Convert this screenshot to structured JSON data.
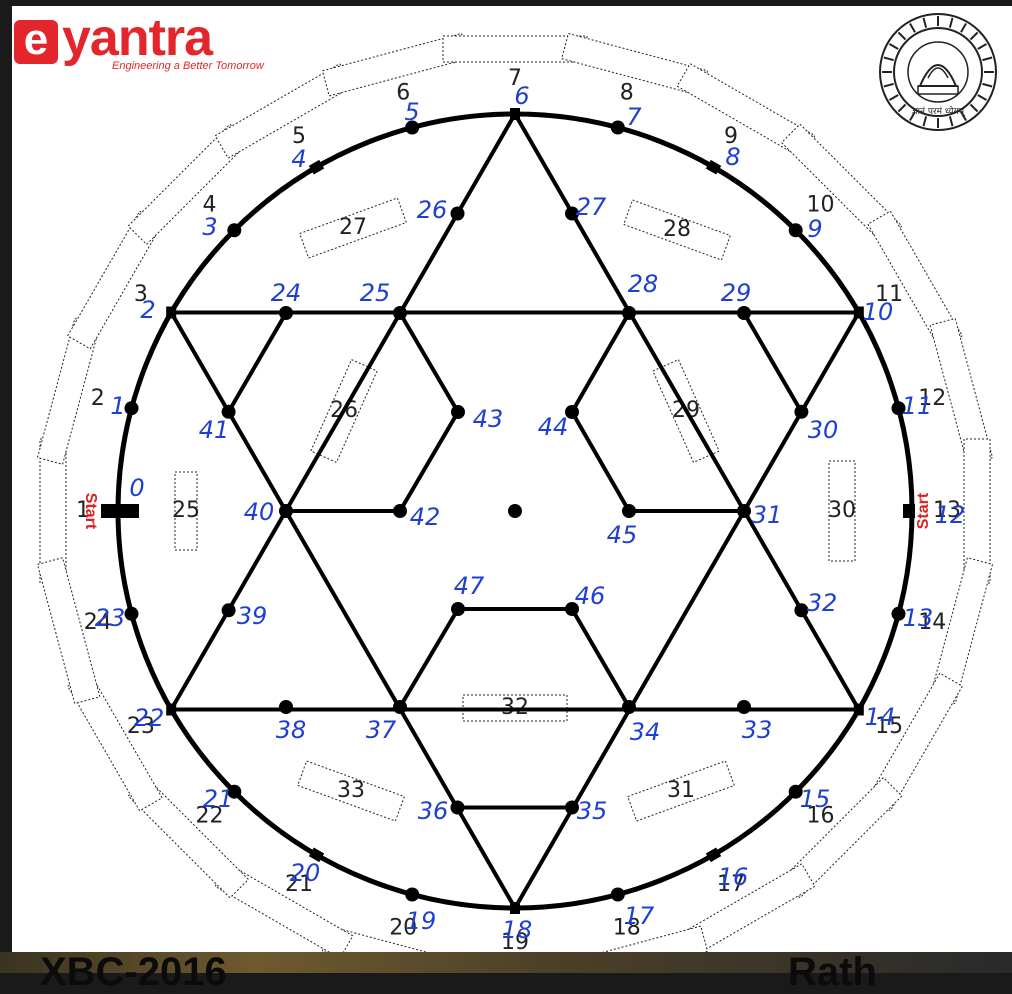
{
  "brand": {
    "logo_letter": "e",
    "logo_word": "yantra",
    "tagline": "Engineering a Better Tomorrow",
    "accent": "#e3262b"
  },
  "emblem": {
    "name": "iit-bombay-seal-icon",
    "inscription_top": "भारतीय प्रौद्योगिकी संस्थान मुंबई  INDIAN INSTITUTE OF TECHNOLOGY BOMBAY",
    "motto": "ज्ञानं परमं ध्येयम्"
  },
  "start_labels": {
    "left": "Start",
    "right": "Start",
    "color": "#e02020"
  },
  "zones_outer": [
    "1",
    "2",
    "3",
    "4",
    "5",
    "6",
    "7",
    "8",
    "9",
    "10",
    "11",
    "12",
    "13",
    "14",
    "15",
    "16",
    "17",
    "18",
    "19",
    "20",
    "21",
    "22",
    "23",
    "24"
  ],
  "zones_inner": [
    "25",
    "26",
    "27",
    "28",
    "29",
    "30",
    "31",
    "32",
    "33"
  ],
  "node_labels": [
    "0",
    "1",
    "2",
    "3",
    "4",
    "5",
    "6",
    "7",
    "8",
    "9",
    "10",
    "11",
    "12",
    "13",
    "14",
    "15",
    "16",
    "17",
    "18",
    "19",
    "20",
    "21",
    "22",
    "23",
    "24",
    "25",
    "26",
    "27",
    "28",
    "29",
    "30",
    "31",
    "32",
    "33",
    "34",
    "35",
    "36",
    "37",
    "38",
    "39",
    "40",
    "41",
    "42",
    "43",
    "44",
    "45",
    "46",
    "47"
  ],
  "annotation_color": "#1f3fd0",
  "bottom_strip": {
    "left_text": "XBC-2016",
    "right_text": "Rath"
  }
}
